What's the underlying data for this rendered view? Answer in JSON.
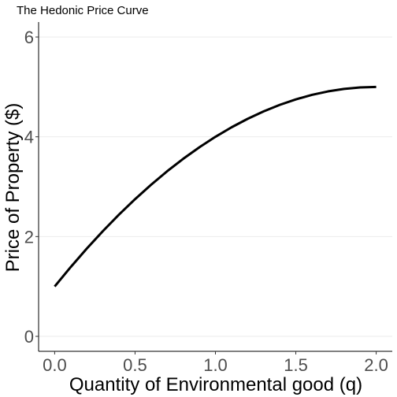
{
  "chart_data": {
    "type": "line",
    "title": "The Hedonic Price Curve",
    "xlabel": "Quantity of Environmental good (q)",
    "ylabel": "Price of Property ($)",
    "xlim": [
      -0.1,
      2.1
    ],
    "ylim": [
      -0.3,
      6.3
    ],
    "xticks": [
      0.0,
      0.5,
      1.0,
      1.5,
      2.0
    ],
    "xtick_labels": [
      "0.0",
      "0.5",
      "1.0",
      "1.5",
      "2.0"
    ],
    "yticks": [
      0,
      2,
      4,
      6
    ],
    "ytick_labels": [
      "0",
      "2",
      "4",
      "6"
    ],
    "grid": "horizontal major lines",
    "series": [
      {
        "color": "#000000",
        "x": [
          0.0,
          0.1,
          0.2,
          0.3,
          0.4,
          0.5,
          0.6,
          0.7,
          0.8,
          0.9,
          1.0,
          1.1,
          1.2,
          1.3,
          1.4,
          1.5,
          1.6,
          1.7,
          1.8,
          1.9,
          2.0
        ],
        "y": [
          1.0,
          1.39,
          1.76,
          2.11,
          2.44,
          2.75,
          3.04,
          3.31,
          3.56,
          3.79,
          4.0,
          4.19,
          4.36,
          4.51,
          4.64,
          4.75,
          4.84,
          4.91,
          4.96,
          4.99,
          5.0
        ]
      }
    ]
  }
}
